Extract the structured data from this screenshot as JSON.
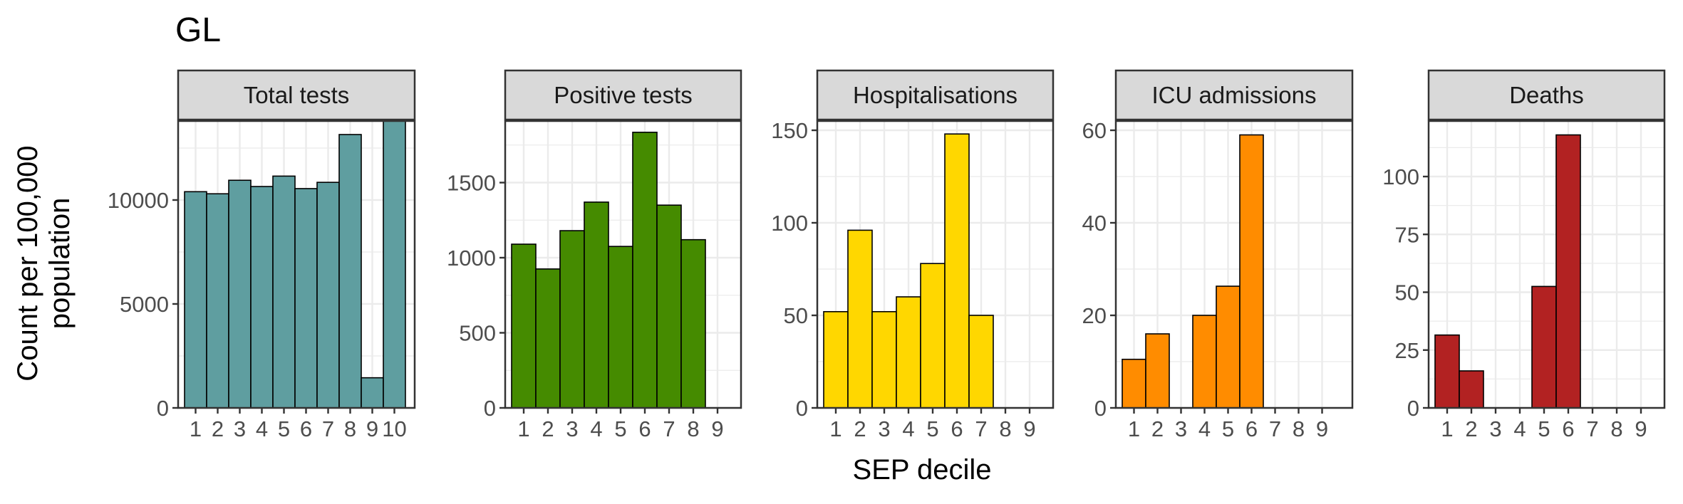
{
  "title": "GL",
  "ylabel_lines": [
    "Count per 100,000",
    "population"
  ],
  "xlabel": "SEP decile",
  "colors": {
    "strip_fill": "#d9d9d9",
    "grid": "#ebebeb",
    "axis": "#333333"
  },
  "chart_data": [
    {
      "type": "bar",
      "panel": "Total tests",
      "color": "#5f9ea0",
      "categories": [
        "1",
        "2",
        "3",
        "4",
        "5",
        "6",
        "7",
        "8",
        "9",
        "10"
      ],
      "values": [
        10400,
        10300,
        10950,
        10650,
        11150,
        10550,
        10850,
        13150,
        1450,
        13800
      ],
      "yticks": [
        0,
        5000,
        10000
      ],
      "ylim": [
        0,
        13800
      ]
    },
    {
      "type": "bar",
      "panel": "Positive tests",
      "color": "#458b00",
      "categories": [
        "1",
        "2",
        "3",
        "4",
        "5",
        "6",
        "7",
        "8",
        "9"
      ],
      "values": [
        1090,
        925,
        1180,
        1370,
        1075,
        1835,
        1350,
        1120,
        0
      ],
      "yticks": [
        0,
        500,
        1000,
        1500
      ],
      "ylim": [
        0,
        1910
      ]
    },
    {
      "type": "bar",
      "panel": "Hospitalisations",
      "color": "#ffd700",
      "categories": [
        "1",
        "2",
        "3",
        "4",
        "5",
        "6",
        "7",
        "8",
        "9"
      ],
      "values": [
        52,
        96,
        52,
        60,
        78,
        148,
        50,
        0,
        0
      ],
      "yticks": [
        0,
        50,
        100,
        150
      ],
      "ylim": [
        0,
        155
      ]
    },
    {
      "type": "bar",
      "panel": "ICU admissions",
      "color": "#ff8c00",
      "categories": [
        "1",
        "2",
        "3",
        "4",
        "5",
        "6",
        "7",
        "8",
        "9"
      ],
      "values": [
        10.5,
        16,
        0,
        20,
        26.3,
        59,
        0,
        0,
        0
      ],
      "yticks": [
        0,
        20,
        40,
        60
      ],
      "ylim": [
        0,
        62
      ]
    },
    {
      "type": "bar",
      "panel": "Deaths",
      "color": "#b22222",
      "categories": [
        "1",
        "2",
        "3",
        "4",
        "5",
        "6",
        "7",
        "8",
        "9"
      ],
      "values": [
        31.5,
        16,
        0,
        0,
        52.5,
        118,
        0,
        0,
        0
      ],
      "yticks": [
        0,
        25,
        50,
        75,
        100
      ],
      "ylim": [
        0,
        124
      ]
    }
  ]
}
